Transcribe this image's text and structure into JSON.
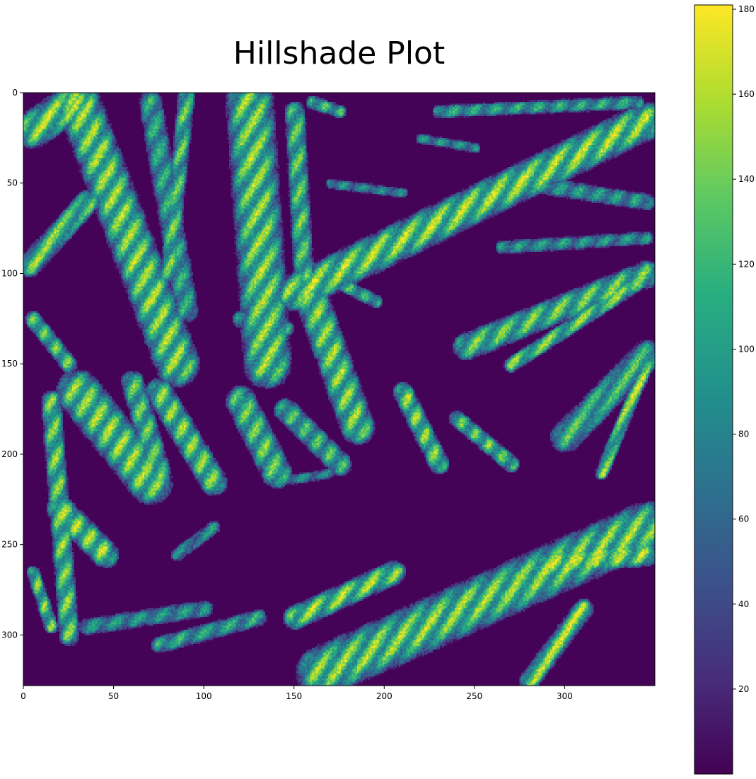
{
  "chart_data": {
    "type": "heatmap",
    "title": "Hillshade Plot",
    "xlabel": "",
    "ylabel": "",
    "x_ticks": [
      0,
      50,
      100,
      150,
      200,
      250,
      300
    ],
    "y_ticks": [
      0,
      50,
      100,
      150,
      200,
      250,
      300
    ],
    "xlim": [
      0,
      350
    ],
    "ylim": [
      328,
      0
    ],
    "grid_size": [
      350,
      328
    ],
    "colormap": "viridis",
    "colorbar": {
      "range": [
        0,
        181
      ],
      "ticks": [
        20,
        40,
        60,
        80,
        100,
        120,
        140,
        160,
        180
      ],
      "location": "right"
    },
    "bright_features": [
      {
        "p0": [
          5,
          20
        ],
        "p1": [
          27,
          5
        ],
        "w": 22,
        "v": 172
      },
      {
        "p0": [
          3,
          95
        ],
        "p1": [
          35,
          60
        ],
        "w": 14,
        "v": 160
      },
      {
        "p0": [
          5,
          125
        ],
        "p1": [
          25,
          150
        ],
        "w": 10,
        "v": 150
      },
      {
        "p0": [
          30,
          5
        ],
        "p1": [
          85,
          150
        ],
        "w": 26,
        "v": 168
      },
      {
        "p0": [
          70,
          5
        ],
        "p1": [
          90,
          120
        ],
        "w": 14,
        "v": 125
      },
      {
        "p0": [
          90,
          0
        ],
        "p1": [
          80,
          100
        ],
        "w": 10,
        "v": 150
      },
      {
        "p0": [
          125,
          5
        ],
        "p1": [
          135,
          150
        ],
        "w": 28,
        "v": 165
      },
      {
        "p0": [
          150,
          10
        ],
        "p1": [
          155,
          100
        ],
        "w": 12,
        "v": 150
      },
      {
        "p0": [
          160,
          5
        ],
        "p1": [
          175,
          10
        ],
        "w": 8,
        "v": 140
      },
      {
        "p0": [
          160,
          115
        ],
        "p1": [
          185,
          185
        ],
        "w": 20,
        "v": 165
      },
      {
        "p0": [
          175,
          105
        ],
        "p1": [
          195,
          115
        ],
        "w": 8,
        "v": 135
      },
      {
        "p0": [
          150,
          110
        ],
        "p1": [
          345,
          15
        ],
        "w": 22,
        "v": 172
      },
      {
        "p0": [
          230,
          10
        ],
        "p1": [
          340,
          5
        ],
        "w": 8,
        "v": 125
      },
      {
        "p0": [
          220,
          25
        ],
        "p1": [
          250,
          30
        ],
        "w": 6,
        "v": 110
      },
      {
        "p0": [
          170,
          50
        ],
        "p1": [
          210,
          55
        ],
        "w": 6,
        "v": 100
      },
      {
        "p0": [
          280,
          50
        ],
        "p1": [
          345,
          60
        ],
        "w": 10,
        "v": 115
      },
      {
        "p0": [
          265,
          85
        ],
        "p1": [
          345,
          80
        ],
        "w": 8,
        "v": 110
      },
      {
        "p0": [
          210,
          165
        ],
        "p1": [
          230,
          205
        ],
        "w": 12,
        "v": 165
      },
      {
        "p0": [
          240,
          180
        ],
        "p1": [
          270,
          205
        ],
        "w": 10,
        "v": 150
      },
      {
        "p0": [
          245,
          140
        ],
        "p1": [
          345,
          100
        ],
        "w": 16,
        "v": 155
      },
      {
        "p0": [
          270,
          150
        ],
        "p1": [
          340,
          105
        ],
        "w": 9,
        "v": 165
      },
      {
        "p0": [
          300,
          190
        ],
        "p1": [
          345,
          145
        ],
        "w": 18,
        "v": 140
      },
      {
        "p0": [
          320,
          210
        ],
        "p1": [
          345,
          150
        ],
        "w": 8,
        "v": 172
      },
      {
        "p0": [
          15,
          170
        ],
        "p1": [
          25,
          300
        ],
        "w": 12,
        "v": 160
      },
      {
        "p0": [
          30,
          165
        ],
        "p1": [
          70,
          215
        ],
        "w": 26,
        "v": 168
      },
      {
        "p0": [
          60,
          160
        ],
        "p1": [
          75,
          210
        ],
        "w": 14,
        "v": 150
      },
      {
        "p0": [
          20,
          230
        ],
        "p1": [
          45,
          255
        ],
        "w": 16,
        "v": 172
      },
      {
        "p0": [
          5,
          265
        ],
        "p1": [
          15,
          295
        ],
        "w": 8,
        "v": 160
      },
      {
        "p0": [
          75,
          165
        ],
        "p1": [
          105,
          215
        ],
        "w": 16,
        "v": 165
      },
      {
        "p0": [
          120,
          170
        ],
        "p1": [
          140,
          210
        ],
        "w": 18,
        "v": 155
      },
      {
        "p0": [
          145,
          175
        ],
        "p1": [
          175,
          205
        ],
        "w": 14,
        "v": 140
      },
      {
        "p0": [
          150,
          290
        ],
        "p1": [
          205,
          265
        ],
        "w": 14,
        "v": 172
      },
      {
        "p0": [
          165,
          320
        ],
        "p1": [
          345,
          240
        ],
        "w": 30,
        "v": 165
      },
      {
        "p0": [
          290,
          260
        ],
        "p1": [
          345,
          255
        ],
        "w": 14,
        "v": 170
      },
      {
        "p0": [
          280,
          325
        ],
        "p1": [
          310,
          285
        ],
        "w": 12,
        "v": 172
      },
      {
        "p0": [
          35,
          295
        ],
        "p1": [
          100,
          285
        ],
        "w": 10,
        "v": 110
      },
      {
        "p0": [
          75,
          305
        ],
        "p1": [
          130,
          290
        ],
        "w": 10,
        "v": 125
      },
      {
        "p0": [
          85,
          255
        ],
        "p1": [
          105,
          240
        ],
        "w": 8,
        "v": 105
      },
      {
        "p0": [
          140,
          215
        ],
        "p1": [
          170,
          210
        ],
        "w": 6,
        "v": 100
      },
      {
        "p0": [
          220,
          290
        ],
        "p1": [
          240,
          275
        ],
        "w": 6,
        "v": 110
      },
      {
        "p0": [
          120,
          125
        ],
        "p1": [
          145,
          130
        ],
        "w": 10,
        "v": 120
      }
    ]
  }
}
